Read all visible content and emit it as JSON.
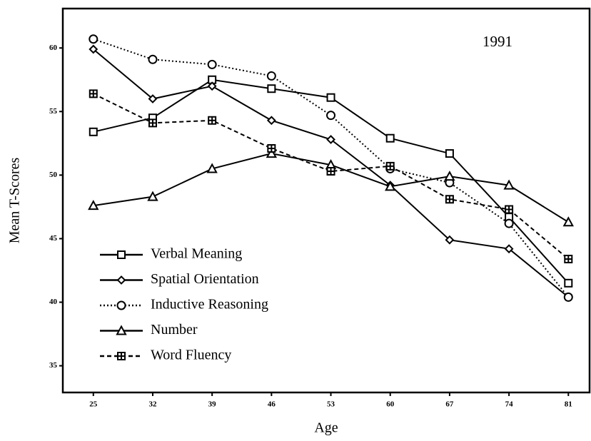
{
  "chart_data": {
    "type": "line",
    "annotation": "1991",
    "xlabel": "Age",
    "ylabel": "Mean T-Scores",
    "x": [
      25,
      32,
      39,
      46,
      53,
      60,
      67,
      74,
      81
    ],
    "xlim": [
      21.4,
      83.5
    ],
    "xticks": [
      25,
      32,
      39,
      46,
      53,
      60,
      67,
      74,
      81
    ],
    "ylim": [
      32.9,
      63.1
    ],
    "yticks": [
      35,
      40,
      45,
      50,
      55,
      60
    ],
    "legend": "lower left",
    "series": [
      {
        "name": "Verbal Meaning",
        "color": "#000000",
        "marker": "square",
        "dash": "solid",
        "values": [
          53.4,
          54.5,
          57.5,
          56.8,
          56.1,
          52.9,
          51.7,
          46.7,
          41.5
        ]
      },
      {
        "name": "Spatial Orientation",
        "color": "#000000",
        "marker": "diamond",
        "dash": "solid",
        "values": [
          59.9,
          56.0,
          57.0,
          54.3,
          52.8,
          49.2,
          44.9,
          44.2,
          40.4
        ]
      },
      {
        "name": "Inductive Reasoning",
        "color": "#000000",
        "marker": "circle",
        "dash": "dotted",
        "values": [
          60.7,
          59.1,
          58.7,
          57.8,
          54.7,
          50.5,
          49.4,
          46.2,
          40.4
        ]
      },
      {
        "name": "Number",
        "color": "#000000",
        "marker": "triangle",
        "dash": "solid",
        "values": [
          47.6,
          48.3,
          50.5,
          51.7,
          50.8,
          49.1,
          49.9,
          49.2,
          46.3
        ]
      },
      {
        "name": "Word Fluency",
        "color": "#000000",
        "marker": "crossed-square",
        "dash": "dashed",
        "values": [
          56.4,
          54.1,
          54.3,
          52.1,
          50.3,
          50.7,
          48.1,
          47.3,
          43.4
        ]
      }
    ]
  }
}
